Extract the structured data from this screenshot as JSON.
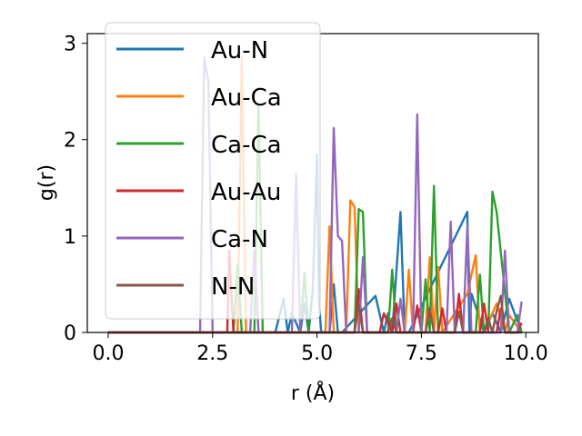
{
  "chart_data": {
    "type": "line",
    "title": "",
    "xlabel": "r (Å)",
    "ylabel": "g(r)",
    "xlim": [
      -0.5,
      10.3
    ],
    "ylim": [
      0,
      3.1
    ],
    "xticks": [
      0.0,
      2.5,
      5.0,
      7.5,
      10.0
    ],
    "xtick_labels": [
      "0.0",
      "2.5",
      "5.0",
      "7.5",
      "10.0"
    ],
    "yticks": [
      0,
      1,
      2,
      3
    ],
    "ytick_labels": [
      "0",
      "1",
      "2",
      "3"
    ],
    "grid": false,
    "legend_position": "upper-left",
    "series": [
      {
        "name": "Au-N",
        "color": "#1f77b4",
        "x": [
          0.0,
          4.0,
          4.2,
          4.3,
          4.4,
          4.6,
          4.7,
          4.8,
          4.9,
          5.0,
          5.05,
          5.1,
          5.3,
          5.4,
          5.5,
          5.6,
          6.4,
          6.6,
          6.7,
          6.8,
          7.0,
          7.1,
          7.2,
          8.6,
          8.65,
          8.7,
          9.0,
          9.2,
          9.4,
          9.6,
          9.9
        ],
        "y": [
          0.0,
          0.0,
          0.35,
          0.0,
          0.2,
          0.0,
          0.3,
          0.0,
          0.45,
          1.85,
          0.3,
          0.0,
          0.0,
          0.5,
          0.0,
          0.0,
          0.38,
          0.0,
          0.2,
          0.0,
          1.25,
          0.0,
          0.0,
          1.25,
          0.0,
          0.4,
          0.0,
          0.2,
          0.0,
          0.35,
          0.0
        ]
      },
      {
        "name": "Au-Ca",
        "color": "#ff7f0e",
        "x": [
          0.0,
          3.0,
          3.1,
          3.2,
          3.3,
          3.4,
          5.2,
          5.3,
          5.4,
          5.7,
          5.8,
          5.9,
          6.0,
          6.3,
          6.5,
          7.1,
          7.2,
          7.3,
          7.4,
          7.6,
          7.7,
          7.8,
          7.9,
          8.0,
          8.6,
          8.8,
          8.9,
          9.0,
          9.3,
          9.5,
          9.6,
          9.9
        ],
        "y": [
          0.0,
          0.0,
          0.0,
          2.85,
          0.0,
          0.0,
          0.0,
          1.1,
          0.0,
          0.0,
          1.37,
          1.3,
          0.0,
          0.0,
          0.0,
          0.0,
          0.65,
          0.0,
          0.0,
          0.0,
          0.78,
          0.0,
          0.68,
          0.0,
          0.4,
          0.8,
          0.0,
          0.0,
          0.3,
          0.0,
          0.18,
          0.0
        ]
      },
      {
        "name": "Ca-Ca",
        "color": "#2ca02c",
        "x": [
          0.0,
          3.0,
          3.1,
          3.2,
          3.3,
          3.5,
          3.6,
          3.7,
          4.6,
          4.7,
          4.8,
          5.9,
          6.0,
          6.1,
          6.2,
          6.7,
          6.8,
          6.9,
          7.0,
          7.5,
          7.6,
          7.7,
          7.8,
          7.9,
          8.0,
          8.7,
          8.8,
          8.9,
          9.0,
          9.1,
          9.2,
          9.3,
          9.6,
          9.8,
          9.9
        ],
        "y": [
          0.0,
          0.0,
          0.7,
          0.0,
          0.0,
          0.0,
          2.35,
          0.0,
          0.0,
          0.62,
          0.0,
          0.0,
          1.28,
          1.25,
          0.0,
          0.0,
          0.65,
          0.0,
          0.0,
          0.0,
          0.55,
          0.0,
          1.52,
          0.0,
          0.0,
          0.0,
          0.0,
          0.6,
          0.0,
          0.0,
          1.46,
          1.25,
          0.0,
          0.18,
          0.0
        ]
      },
      {
        "name": "Au-Au",
        "color": "#d62728",
        "x": [
          0.0,
          2.8,
          2.85,
          2.9,
          3.0,
          5.9,
          6.0,
          6.1,
          6.5,
          6.6,
          6.8,
          6.9,
          7.0,
          7.3,
          7.4,
          7.5,
          7.9,
          8.0,
          8.1,
          8.3,
          8.4,
          8.5,
          8.9,
          9.0,
          9.1,
          9.3,
          9.4,
          9.5,
          9.8,
          9.9
        ],
        "y": [
          0.0,
          0.0,
          0.0,
          0.85,
          0.0,
          0.0,
          0.45,
          0.0,
          0.0,
          0.2,
          0.0,
          0.3,
          0.0,
          0.0,
          0.28,
          0.0,
          0.0,
          0.25,
          0.0,
          0.0,
          0.4,
          0.0,
          0.0,
          0.3,
          0.0,
          0.0,
          0.25,
          0.0,
          0.0,
          0.1
        ]
      },
      {
        "name": "Ca-N",
        "color": "#9467bd",
        "x": [
          0.0,
          2.1,
          2.2,
          2.3,
          2.4,
          2.5,
          2.6,
          3.4,
          3.5,
          3.6,
          4.4,
          4.5,
          4.6,
          5.3,
          5.4,
          5.5,
          5.6,
          5.7,
          6.0,
          6.1,
          6.2,
          6.9,
          7.0,
          7.1,
          7.3,
          7.4,
          7.5,
          7.9,
          8.0,
          8.1,
          8.2,
          8.3,
          8.5,
          8.6,
          8.7,
          9.4,
          9.5,
          9.6,
          9.8,
          9.9
        ],
        "y": [
          0.0,
          0.0,
          0.0,
          2.85,
          2.6,
          0.0,
          0.0,
          0.0,
          0.85,
          0.0,
          0.0,
          1.65,
          0.0,
          0.0,
          2.12,
          1.0,
          0.95,
          0.0,
          0.0,
          0.78,
          0.0,
          0.0,
          0.35,
          0.0,
          0.0,
          2.26,
          0.0,
          0.0,
          0.0,
          0.0,
          1.15,
          0.0,
          0.0,
          1.1,
          0.0,
          0.0,
          0.85,
          0.0,
          0.0,
          0.32
        ]
      },
      {
        "name": "N-N",
        "color": "#8c564b",
        "x": [
          0.0,
          5.9,
          6.0,
          6.1,
          6.7,
          6.8,
          6.9,
          7.6,
          7.7,
          7.8,
          8.3,
          8.4,
          8.5,
          9.0,
          9.1,
          9.2,
          9.3,
          9.4,
          9.5,
          9.9
        ],
        "y": [
          0.0,
          0.0,
          0.3,
          0.0,
          0.0,
          0.15,
          0.0,
          0.0,
          0.25,
          0.0,
          0.0,
          0.22,
          0.0,
          0.0,
          0.15,
          0.0,
          0.22,
          0.38,
          0.0,
          0.0
        ]
      }
    ]
  }
}
